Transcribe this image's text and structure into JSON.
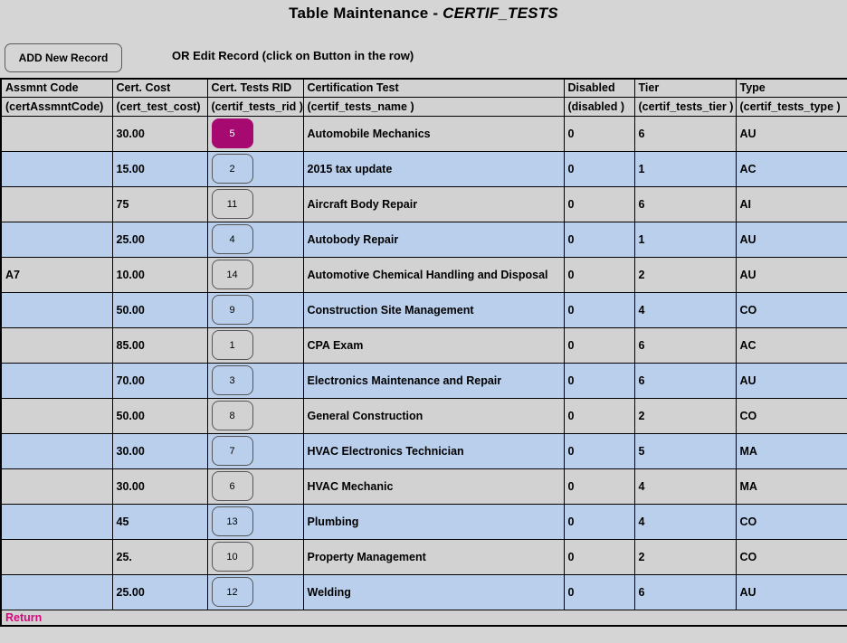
{
  "header": {
    "title_prefix": "Table Maintenance - ",
    "title_table": "CERTIF_TESTS"
  },
  "toolbar": {
    "add_button_label": "ADD New Record",
    "edit_hint": "OR Edit Record (click on Button in the row)"
  },
  "table": {
    "columns": [
      {
        "label": "Assmnt Code",
        "sub": "(certAssmntCode)"
      },
      {
        "label": "Cert. Cost",
        "sub": "(cert_test_cost)"
      },
      {
        "label": "Cert. Tests RID",
        "sub": "(certif_tests_rid )"
      },
      {
        "label": "Certification Test",
        "sub": "(certif_tests_name )"
      },
      {
        "label": "Disabled",
        "sub": "(disabled )"
      },
      {
        "label": "Tier",
        "sub": "(certif_tests_tier )"
      },
      {
        "label": "Type",
        "sub": "(certif_tests_type )"
      }
    ],
    "rows": [
      {
        "assmnt_code": "",
        "cost": "30.00",
        "rid": "5",
        "name": "Automobile Mechanics",
        "disabled": "0",
        "tier": "6",
        "type": "AU",
        "highlighted": true
      },
      {
        "assmnt_code": "",
        "cost": "15.00",
        "rid": "2",
        "name": "2015 tax update",
        "disabled": "0",
        "tier": "1",
        "type": "AC",
        "highlighted": false
      },
      {
        "assmnt_code": "",
        "cost": "75",
        "rid": "11",
        "name": "Aircraft Body Repair",
        "disabled": "0",
        "tier": "6",
        "type": "AI",
        "highlighted": false
      },
      {
        "assmnt_code": "",
        "cost": "25.00",
        "rid": "4",
        "name": "Autobody Repair",
        "disabled": "0",
        "tier": "1",
        "type": "AU",
        "highlighted": false
      },
      {
        "assmnt_code": "A7",
        "cost": "10.00",
        "rid": "14",
        "name": "Automotive Chemical Handling and Disposal",
        "disabled": "0",
        "tier": "2",
        "type": "AU",
        "highlighted": false
      },
      {
        "assmnt_code": "",
        "cost": "50.00",
        "rid": "9",
        "name": "Construction Site Management",
        "disabled": "0",
        "tier": "4",
        "type": "CO",
        "highlighted": false
      },
      {
        "assmnt_code": "",
        "cost": "85.00",
        "rid": "1",
        "name": "CPA Exam",
        "disabled": "0",
        "tier": "6",
        "type": "AC",
        "highlighted": false
      },
      {
        "assmnt_code": "",
        "cost": "70.00",
        "rid": "3",
        "name": "Electronics Maintenance and Repair",
        "disabled": "0",
        "tier": "6",
        "type": "AU",
        "highlighted": false
      },
      {
        "assmnt_code": "",
        "cost": "50.00",
        "rid": "8",
        "name": "General Construction",
        "disabled": "0",
        "tier": "2",
        "type": "CO",
        "highlighted": false
      },
      {
        "assmnt_code": "",
        "cost": "30.00",
        "rid": "7",
        "name": "HVAC Electronics Technician",
        "disabled": "0",
        "tier": "5",
        "type": "MA",
        "highlighted": false
      },
      {
        "assmnt_code": "",
        "cost": "30.00",
        "rid": "6",
        "name": "HVAC Mechanic",
        "disabled": "0",
        "tier": "4",
        "type": "MA",
        "highlighted": false
      },
      {
        "assmnt_code": "",
        "cost": "45",
        "rid": "13",
        "name": "Plumbing",
        "disabled": "0",
        "tier": "4",
        "type": "CO",
        "highlighted": false
      },
      {
        "assmnt_code": "",
        "cost": "25.",
        "rid": "10",
        "name": "Property Management",
        "disabled": "0",
        "tier": "2",
        "type": "CO",
        "highlighted": false
      },
      {
        "assmnt_code": "",
        "cost": "25.00",
        "rid": "12",
        "name": "Welding",
        "disabled": "0",
        "tier": "6",
        "type": "AU",
        "highlighted": false
      }
    ]
  },
  "footer": {
    "return_label": "Return"
  },
  "colors": {
    "row_blue": "#b9cfec",
    "row_gray": "#d2d2d2",
    "accent_magenta": "#a60a70",
    "return_pink": "#d6087e"
  }
}
